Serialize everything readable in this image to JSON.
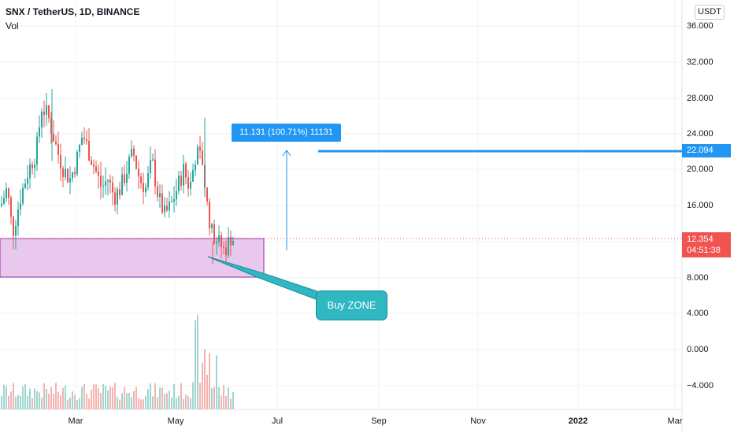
{
  "header": {
    "title": "SNX / TetherUS, 1D, BINANCE",
    "volume_label": "Vol"
  },
  "currency_button": "USDT",
  "y_axis": {
    "labels": [
      "36.000",
      "32.000",
      "28.000",
      "24.000",
      "20.000",
      "16.000",
      "8.000",
      "4.000",
      "0.000",
      "−4.000"
    ]
  },
  "x_axis": {
    "labels": [
      "Mar",
      "May",
      "Jul",
      "Sep",
      "Nov",
      "2022",
      "Mar"
    ]
  },
  "price_tags": {
    "target": "22.094",
    "last_price": "12.354",
    "countdown": "04:51:38"
  },
  "measure_label": "11.131 (100.71%) 11131",
  "callout_label": "Buy ZONE",
  "colors": {
    "up": "#26a69a",
    "down": "#ef5350",
    "zone_fill": "#e8c8ec",
    "zone_border": "#9c27b0",
    "target_line": "#2196f3",
    "callout": "#2fb7c2"
  },
  "icons": [
    "arrow-up-icon"
  ]
}
